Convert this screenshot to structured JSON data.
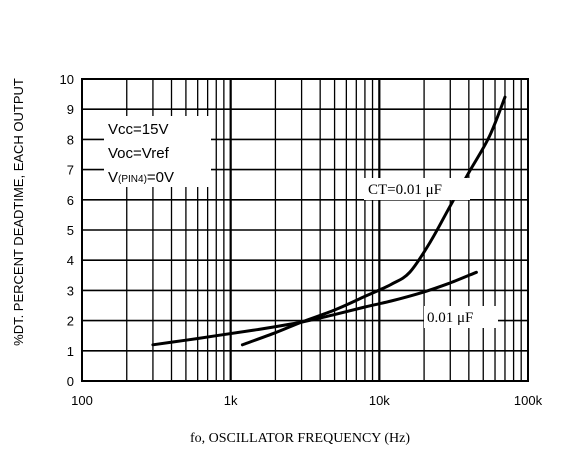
{
  "chart_data": {
    "type": "line",
    "title": "",
    "xlabel": "fo, OSCILLATOR FREQUENCY (Hz)",
    "ylabel": "%DT. PERCENT DEADTIME, EACH OUTPUT",
    "x_scale": "log",
    "xlim": [
      100,
      100000
    ],
    "ylim": [
      0,
      10
    ],
    "x_ticks": [
      {
        "value": 100,
        "label": "100"
      },
      {
        "value": 1000,
        "label": "1k"
      },
      {
        "value": 10000,
        "label": "10k"
      },
      {
        "value": 100000,
        "label": "100k"
      }
    ],
    "y_ticks": [
      0,
      1,
      2,
      3,
      4,
      5,
      6,
      7,
      8,
      9,
      10
    ],
    "grid": true,
    "conditions": {
      "line1": "Vcc=15V",
      "line2": "Voc=Vref",
      "line3_prefix": "V",
      "line3_sub": "(PIN4)",
      "line3_suffix": "=0V"
    },
    "series": [
      {
        "name": "CT=0.01 μF",
        "label": "CT=0.01 μF",
        "points": [
          [
            1200,
            1.2
          ],
          [
            2000,
            1.6
          ],
          [
            3000,
            1.95
          ],
          [
            5000,
            2.35
          ],
          [
            8000,
            2.8
          ],
          [
            12000,
            3.2
          ],
          [
            16000,
            3.6
          ],
          [
            22000,
            4.6
          ],
          [
            30000,
            5.8
          ],
          [
            40000,
            6.9
          ],
          [
            55000,
            8.1
          ],
          [
            70000,
            9.4
          ]
        ]
      },
      {
        "name": "0.01 μF",
        "label": "0.01 μF",
        "points": [
          [
            300,
            1.2
          ],
          [
            500,
            1.35
          ],
          [
            800,
            1.5
          ],
          [
            1500,
            1.7
          ],
          [
            3000,
            1.95
          ],
          [
            5000,
            2.2
          ],
          [
            8000,
            2.45
          ],
          [
            12000,
            2.65
          ],
          [
            20000,
            2.95
          ],
          [
            30000,
            3.25
          ],
          [
            45000,
            3.6
          ]
        ]
      }
    ]
  }
}
